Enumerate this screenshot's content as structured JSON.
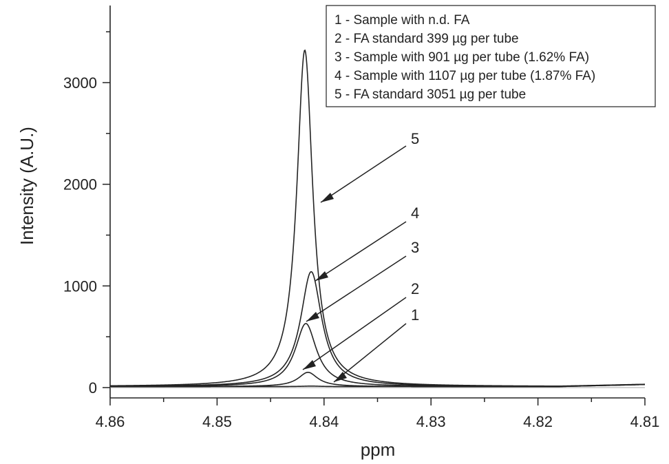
{
  "chart_data": {
    "type": "line",
    "xlabel": "ppm",
    "ylabel": "Intensity (A.U.)",
    "xlim": [
      4.86,
      4.81
    ],
    "ylim": [
      -100,
      3750
    ],
    "x_reversed": true,
    "x_ticks": [
      4.86,
      4.85,
      4.84,
      4.83,
      4.82,
      4.81
    ],
    "x_tick_labels": [
      "4.86",
      "4.85",
      "4.84",
      "4.83",
      "4.82",
      "4.81"
    ],
    "y_ticks": [
      0,
      1000,
      2000,
      3000
    ],
    "y_tick_labels": [
      "0",
      "1000",
      "2000",
      "3000"
    ],
    "legend_position": "top-right",
    "legend": [
      "1 - Sample with n.d. FA",
      "2 - FA standard 399 µg per tube",
      "3 - Sample with 901 µg per tube (1.62% FA)",
      "4 - Sample with 1107 µg per tube (1.87% FA)",
      "5 - FA standard 3051 µg per tube"
    ],
    "series": [
      {
        "name": "1",
        "center": 4.8412,
        "peak": 5,
        "hwhm": 0.001,
        "baseline": 10
      },
      {
        "name": "2",
        "center": 4.8415,
        "peak": 140,
        "hwhm": 0.0011,
        "baseline": 10
      },
      {
        "name": "3",
        "center": 4.8417,
        "peak": 620,
        "hwhm": 0.0012,
        "baseline": 10
      },
      {
        "name": "4",
        "center": 4.8412,
        "peak": 1130,
        "hwhm": 0.0012,
        "baseline": 10
      },
      {
        "name": "5",
        "center": 4.8418,
        "peak": 3310,
        "hwhm": 0.0009,
        "baseline": 10
      }
    ],
    "annotations": [
      {
        "label": "5",
        "x": 4.8401,
        "y": 1790
      },
      {
        "label": "4",
        "x": 4.8409,
        "y": 1040
      },
      {
        "label": "3",
        "x": 4.8417,
        "y": 640
      },
      {
        "label": "2",
        "x": 4.8422,
        "y": 170
      },
      {
        "label": "1",
        "x": 4.8406,
        "y": 20
      }
    ]
  }
}
